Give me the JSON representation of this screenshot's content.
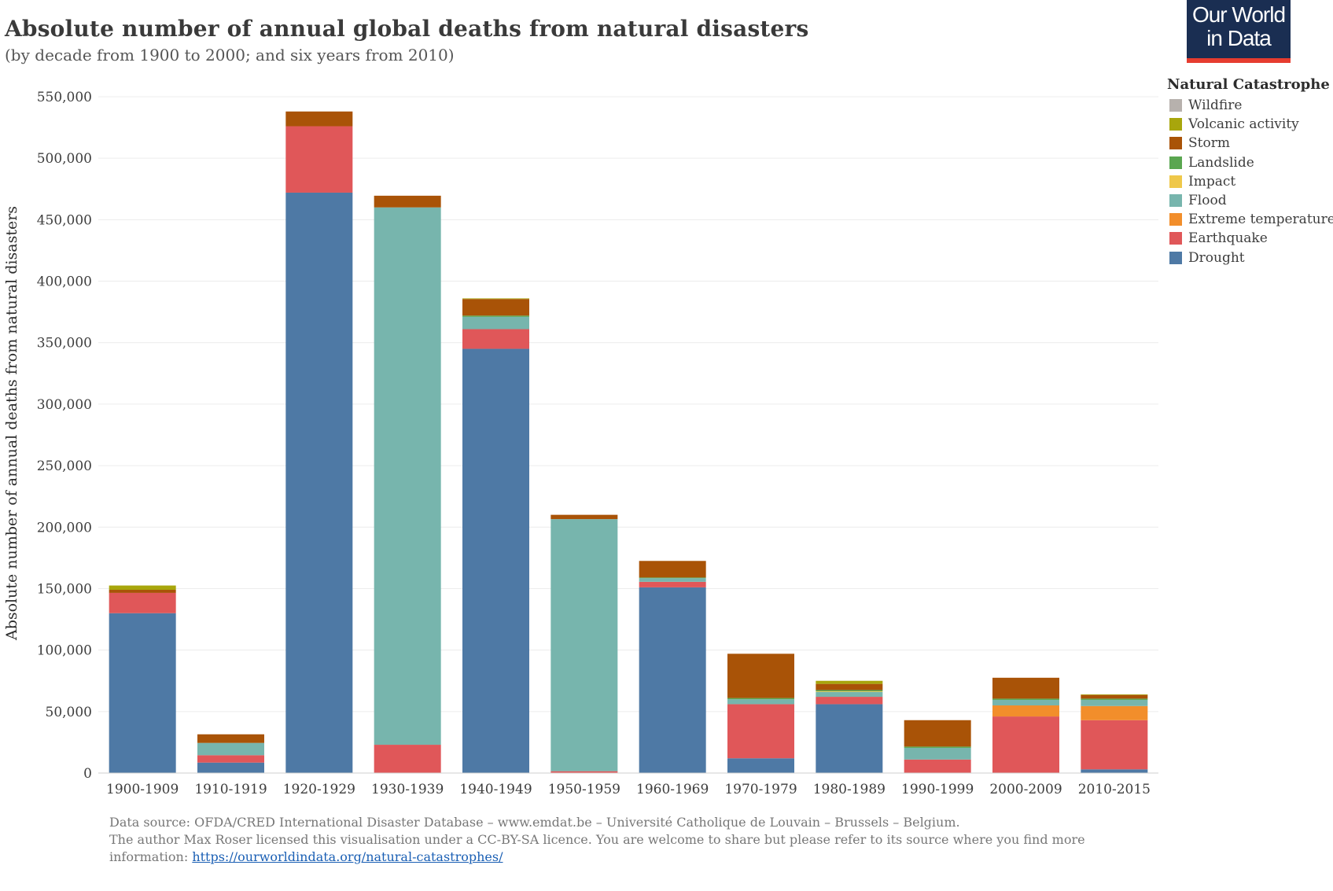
{
  "header": {
    "title": "Absolute number of annual global deaths from natural disasters",
    "subtitle": "(by decade from 1900 to 2000; and six years from 2010)"
  },
  "logo": {
    "line1": "Our World",
    "line2": "in Data",
    "bg_color": "#1a2e52",
    "accent_color": "#e63c2f"
  },
  "legend": {
    "title": "Natural Catastrophe",
    "items": [
      {
        "label": "Wildfire",
        "color": "#b7b1ad"
      },
      {
        "label": "Volcanic activity",
        "color": "#a8a60c"
      },
      {
        "label": "Storm",
        "color": "#a95307"
      },
      {
        "label": "Landslide",
        "color": "#5aa650"
      },
      {
        "label": "Impact",
        "color": "#efc84a"
      },
      {
        "label": "Flood",
        "color": "#77b5ad"
      },
      {
        "label": "Extreme temperature",
        "color": "#f28e2b"
      },
      {
        "label": "Earthquake",
        "color": "#e05759"
      },
      {
        "label": "Drought",
        "color": "#4e79a5"
      }
    ]
  },
  "chart_data": {
    "type": "bar",
    "stacked": true,
    "title": "Absolute number of annual global deaths from natural disasters",
    "subtitle": "(by decade from 1900 to 2000; and six years from 2010)",
    "xlabel": "",
    "ylabel": "Absolute number of annual deaths from natural disasters",
    "ylim": [
      0,
      550000
    ],
    "yticks": [
      0,
      50000,
      100000,
      150000,
      200000,
      250000,
      300000,
      350000,
      400000,
      450000,
      500000,
      550000
    ],
    "ytick_labels": [
      "0",
      "50,000",
      "100,000",
      "150,000",
      "200,000",
      "250,000",
      "300,000",
      "350,000",
      "400,000",
      "450,000",
      "500,000",
      "550,000"
    ],
    "grid": true,
    "legend_position": "right",
    "categories": [
      "1900-1909",
      "1910-1919",
      "1920-1929",
      "1930-1939",
      "1940-1949",
      "1950-1959",
      "1960-1969",
      "1970-1979",
      "1980-1989",
      "1990-1999",
      "2000-2009",
      "2010-2015"
    ],
    "series": [
      {
        "name": "Drought",
        "color": "#4e79a5",
        "values": [
          130000,
          8500,
          472000,
          0,
          345000,
          0,
          151000,
          12000,
          56000,
          0,
          0,
          3000
        ]
      },
      {
        "name": "Earthquake",
        "color": "#e05759",
        "values": [
          16500,
          6000,
          54000,
          23000,
          16000,
          1500,
          4500,
          44000,
          6000,
          11000,
          46000,
          40000
        ]
      },
      {
        "name": "Extreme temperature",
        "color": "#f28e2b",
        "values": [
          0,
          0,
          0,
          0,
          0,
          0,
          0,
          0,
          0,
          0,
          9000,
          11500
        ]
      },
      {
        "name": "Flood",
        "color": "#77b5ad",
        "values": [
          0,
          10000,
          0,
          437000,
          10000,
          205000,
          3000,
          4000,
          4000,
          9500,
          4500,
          5000
        ]
      },
      {
        "name": "Impact",
        "color": "#efc84a",
        "values": [
          0,
          0,
          0,
          0,
          0,
          0,
          0,
          0,
          500,
          0,
          0,
          0
        ]
      },
      {
        "name": "Landslide",
        "color": "#5aa650",
        "values": [
          0,
          0,
          0,
          0,
          1000,
          0,
          500,
          1000,
          1000,
          1000,
          1000,
          1000
        ]
      },
      {
        "name": "Storm",
        "color": "#a95307",
        "values": [
          2500,
          7000,
          12000,
          9500,
          13500,
          3500,
          13500,
          36000,
          5000,
          21500,
          17000,
          3000
        ]
      },
      {
        "name": "Volcanic activity",
        "color": "#a8a60c",
        "values": [
          3500,
          0,
          0,
          0,
          500,
          0,
          0,
          0,
          2500,
          0,
          0,
          500
        ]
      },
      {
        "name": "Wildfire",
        "color": "#b7b1ad",
        "values": [
          0,
          0,
          0,
          0,
          0,
          0,
          0,
          0,
          0,
          0,
          0,
          0
        ]
      }
    ]
  },
  "footer": {
    "source": "Data source: OFDA/CRED International Disaster Database – www.emdat.be – Université Catholique de Louvain – Brussels – Belgium.",
    "licence": "The author Max Roser licensed this visualisation under a CC-BY-SA licence. You are welcome to share but please refer to its source where you find more",
    "info_prefix": "information:",
    "link": "https://ourworldindata.org/natural-catastrophes/"
  }
}
